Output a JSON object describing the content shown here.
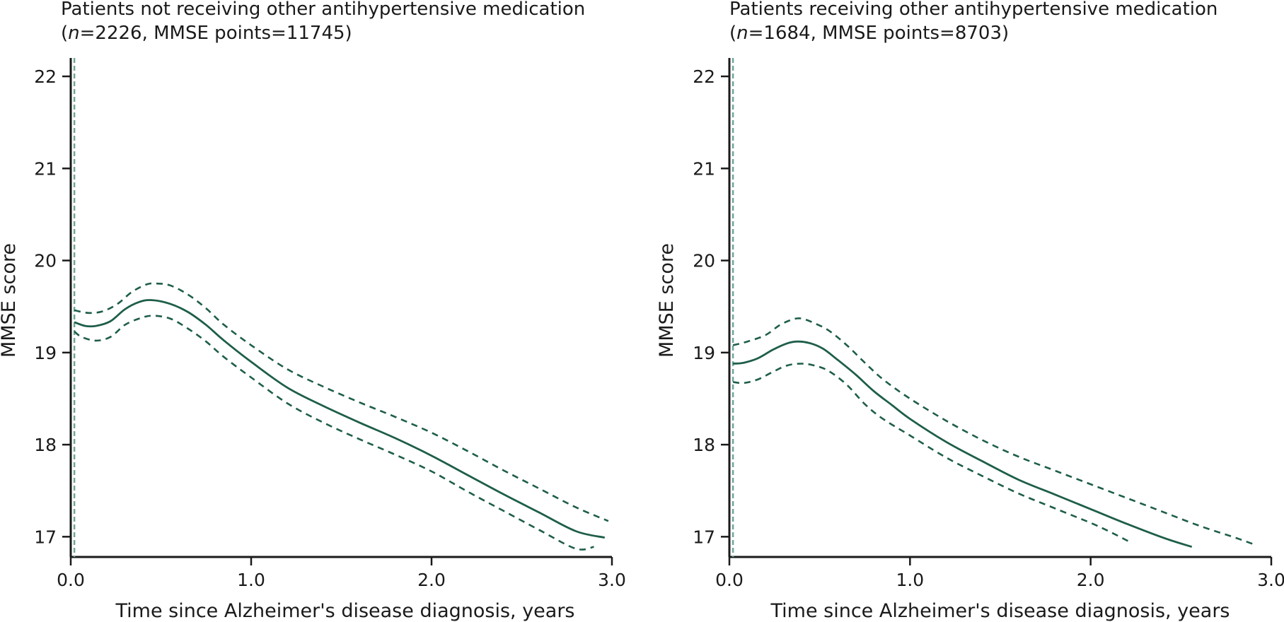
{
  "chart_data": [
    {
      "type": "line",
      "title_line1": "Patients not receiving other antihypertensive medication",
      "title_line2_prefix": "(",
      "title_n_symbol": "n",
      "title_line2_rest": "=2226, MMSE points=11745)",
      "xlabel": "Time since Alzheimer's disease diagnosis, years",
      "ylabel": "MMSE score",
      "xlim": [
        0,
        3
      ],
      "ylim": [
        16.78,
        22.2
      ],
      "xticks": [
        0,
        1,
        2,
        3
      ],
      "xtick_labels": [
        "0.0",
        "1.0",
        "2.0",
        "3.0"
      ],
      "yticks": [
        17,
        18,
        19,
        20,
        21,
        22
      ],
      "ytick_labels": [
        "17",
        "18",
        "19",
        "20",
        "21",
        "22"
      ],
      "diagnosis_line_x": 0.02,
      "series": [
        {
          "name": "Estimated mean",
          "style": "solid",
          "x": [
            0.02,
            0.08,
            0.14,
            0.22,
            0.3,
            0.38,
            0.45,
            0.55,
            0.65,
            0.75,
            0.85,
            1.0,
            1.2,
            1.4,
            1.6,
            1.8,
            2.0,
            2.2,
            2.4,
            2.6,
            2.8,
            2.96
          ],
          "y": [
            19.33,
            19.29,
            19.29,
            19.34,
            19.47,
            19.55,
            19.57,
            19.53,
            19.44,
            19.3,
            19.13,
            18.9,
            18.62,
            18.42,
            18.24,
            18.07,
            17.88,
            17.67,
            17.46,
            17.26,
            17.06,
            16.99
          ]
        },
        {
          "name": "Upper 95% CI",
          "style": "dashed",
          "x": [
            0.02,
            0.1,
            0.18,
            0.26,
            0.34,
            0.42,
            0.47,
            0.55,
            0.65,
            0.75,
            0.85,
            1.0,
            1.2,
            1.4,
            1.6,
            1.8,
            2.0,
            2.2,
            2.4,
            2.6,
            2.8,
            2.98
          ],
          "y": [
            19.46,
            19.43,
            19.45,
            19.53,
            19.66,
            19.74,
            19.75,
            19.73,
            19.63,
            19.48,
            19.3,
            19.08,
            18.82,
            18.63,
            18.46,
            18.3,
            18.13,
            17.93,
            17.72,
            17.52,
            17.32,
            17.17
          ]
        },
        {
          "name": "Lower 95% CI",
          "style": "dashed",
          "x": [
            0.02,
            0.06,
            0.14,
            0.22,
            0.3,
            0.38,
            0.45,
            0.55,
            0.65,
            0.75,
            0.85,
            1.0,
            1.2,
            1.4,
            1.6,
            1.8,
            2.0,
            2.2,
            2.4,
            2.6,
            2.8,
            2.9
          ],
          "y": [
            19.23,
            19.17,
            19.13,
            19.17,
            19.3,
            19.37,
            19.4,
            19.37,
            19.26,
            19.12,
            18.95,
            18.73,
            18.45,
            18.24,
            18.06,
            17.89,
            17.71,
            17.49,
            17.28,
            17.07,
            16.87,
            16.89
          ]
        }
      ]
    },
    {
      "type": "line",
      "title_line1": "Patients receiving other antihypertensive medication",
      "title_line2_prefix": "(",
      "title_n_symbol": "n",
      "title_line2_rest": "=1684, MMSE points=8703)",
      "xlabel": "Time since Alzheimer's disease diagnosis, years",
      "ylabel": "MMSE score",
      "xlim": [
        0,
        3
      ],
      "ylim": [
        16.78,
        22.2
      ],
      "xticks": [
        0,
        1,
        2,
        3
      ],
      "xtick_labels": [
        "0.0",
        "1.0",
        "2.0",
        "3.0"
      ],
      "yticks": [
        17,
        18,
        19,
        20,
        21,
        22
      ],
      "ytick_labels": [
        "17",
        "18",
        "19",
        "20",
        "21",
        "22"
      ],
      "diagnosis_line_x": 0.02,
      "series": [
        {
          "name": "Estimated mean",
          "style": "solid",
          "x": [
            0.02,
            0.08,
            0.16,
            0.24,
            0.32,
            0.38,
            0.45,
            0.52,
            0.6,
            0.7,
            0.8,
            0.9,
            1.0,
            1.2,
            1.4,
            1.6,
            1.8,
            2.0,
            2.2,
            2.4,
            2.56
          ],
          "y": [
            18.88,
            18.89,
            18.94,
            19.03,
            19.1,
            19.12,
            19.1,
            19.04,
            18.92,
            18.76,
            18.58,
            18.43,
            18.28,
            18.03,
            17.82,
            17.62,
            17.46,
            17.3,
            17.14,
            16.99,
            16.89
          ]
        },
        {
          "name": "Upper 95% CI",
          "style": "dashed",
          "x": [
            0.02,
            0.1,
            0.2,
            0.28,
            0.35,
            0.4,
            0.47,
            0.55,
            0.65,
            0.75,
            0.85,
            1.0,
            1.2,
            1.4,
            1.6,
            1.8,
            2.0,
            2.2,
            2.4,
            2.6,
            2.8,
            2.9
          ],
          "y": [
            19.08,
            19.12,
            19.19,
            19.3,
            19.36,
            19.37,
            19.32,
            19.24,
            19.08,
            18.89,
            18.71,
            18.5,
            18.26,
            18.05,
            17.87,
            17.72,
            17.57,
            17.42,
            17.27,
            17.12,
            16.99,
            16.92
          ]
        },
        {
          "name": "Lower 95% CI",
          "style": "dashed",
          "x": [
            0.02,
            0.08,
            0.16,
            0.24,
            0.32,
            0.4,
            0.47,
            0.55,
            0.65,
            0.75,
            0.85,
            1.0,
            1.2,
            1.4,
            1.6,
            1.8,
            2.0,
            2.1,
            2.23
          ],
          "y": [
            18.68,
            18.67,
            18.71,
            18.79,
            18.86,
            18.88,
            18.86,
            18.8,
            18.65,
            18.44,
            18.28,
            18.1,
            17.86,
            17.66,
            17.47,
            17.31,
            17.15,
            17.06,
            16.93
          ]
        }
      ]
    }
  ]
}
